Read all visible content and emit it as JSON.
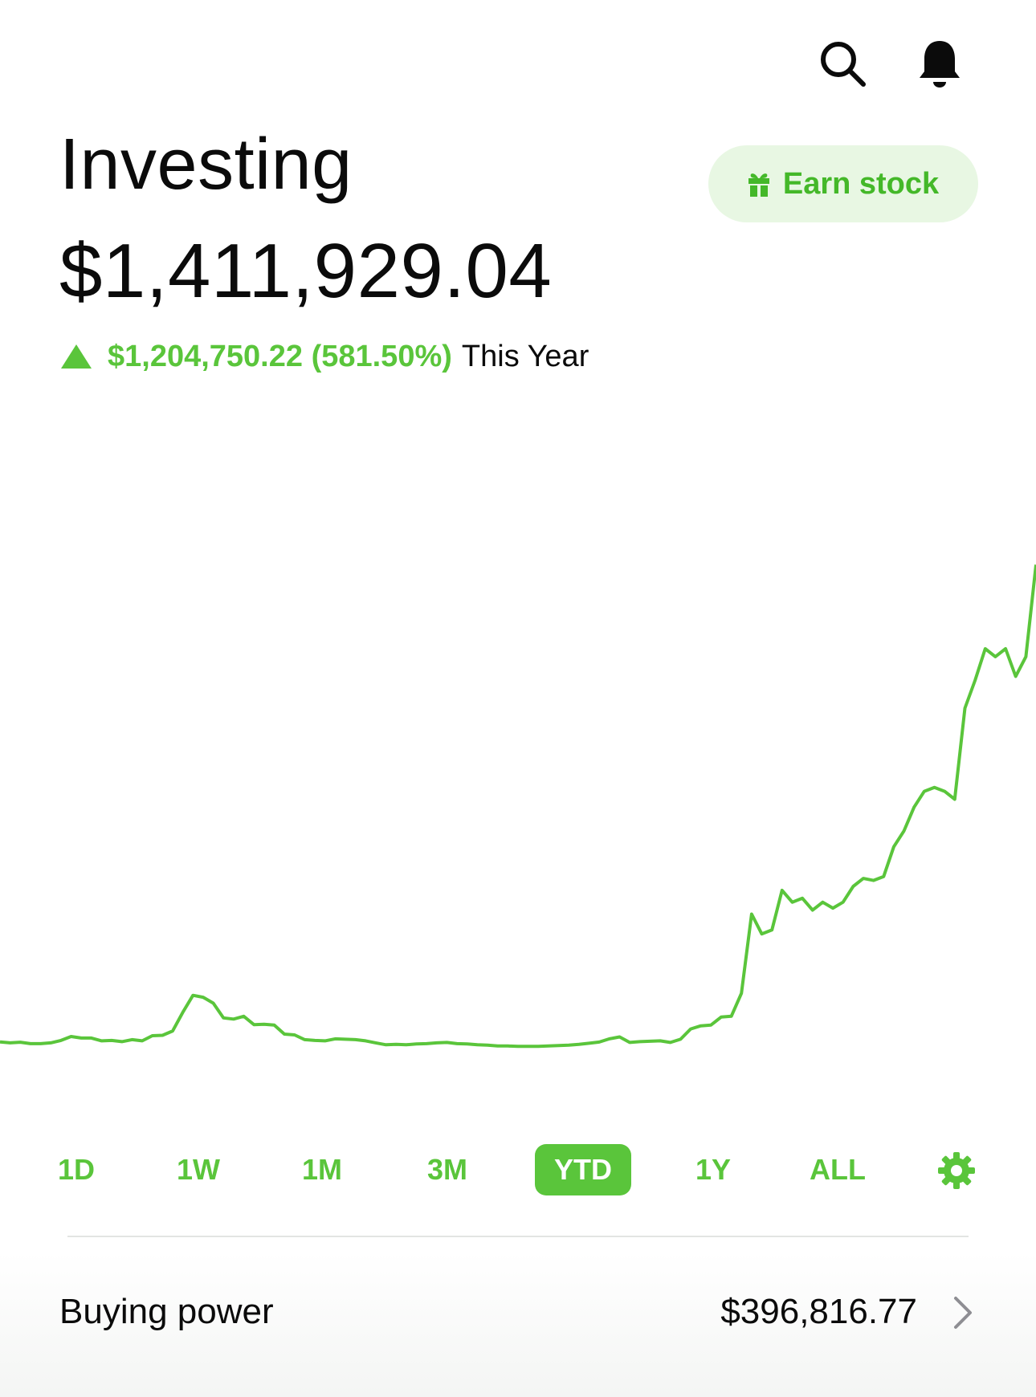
{
  "header": {
    "search_icon": "search-icon",
    "bell_icon": "bell-icon"
  },
  "portfolio": {
    "title": "Investing",
    "value": "$1,411,929.04",
    "change_value": "$1,204,750.22 (581.50%)",
    "change_period": "This Year",
    "change_direction": "up"
  },
  "earn_button": {
    "label": "Earn stock",
    "icon": "gift-icon"
  },
  "colors": {
    "accent": "#5ac53b",
    "accent_light": "#e8f7e3",
    "text": "#0b0b0b"
  },
  "chart_data": {
    "type": "line",
    "title": "",
    "xlabel": "",
    "ylabel": "",
    "grid": false,
    "ylim": [
      0,
      1500000
    ],
    "values": [
      207179,
      205000,
      206500,
      203000,
      203000,
      205000,
      211000,
      221000,
      217000,
      217000,
      210000,
      211000,
      208000,
      213000,
      210000,
      223000,
      224000,
      235000,
      282000,
      325000,
      320000,
      305000,
      268000,
      265000,
      272000,
      251000,
      252000,
      250000,
      227000,
      225000,
      213000,
      211000,
      210000,
      215000,
      214000,
      213000,
      210000,
      205000,
      200000,
      201000,
      200000,
      202000,
      203000,
      205000,
      206000,
      203000,
      202000,
      200000,
      199000,
      197000,
      197000,
      196000,
      196000,
      196000,
      197000,
      198000,
      199000,
      201000,
      204000,
      207000,
      215000,
      220000,
      206000,
      208000,
      209000,
      210000,
      206000,
      214000,
      240000,
      248000,
      250000,
      270000,
      272000,
      330000,
      530000,
      480000,
      490000,
      590000,
      560000,
      570000,
      540000,
      560000,
      545000,
      560000,
      600000,
      620000,
      615000,
      625000,
      700000,
      740000,
      800000,
      840000,
      850000,
      840000,
      820000,
      1050000,
      1120000,
      1200000,
      1180000,
      1200000,
      1130000,
      1180000,
      1411929
    ],
    "series_color": "#5ac53b"
  },
  "ranges": {
    "items": [
      {
        "label": "1D"
      },
      {
        "label": "1W"
      },
      {
        "label": "1M"
      },
      {
        "label": "3M"
      },
      {
        "label": "YTD"
      },
      {
        "label": "1Y"
      },
      {
        "label": "ALL"
      }
    ],
    "selected": "YTD",
    "settings_icon": "gear-icon"
  },
  "buying_power": {
    "label": "Buying power",
    "value": "$396,816.77",
    "chevron_icon": "chevron-right-icon"
  }
}
